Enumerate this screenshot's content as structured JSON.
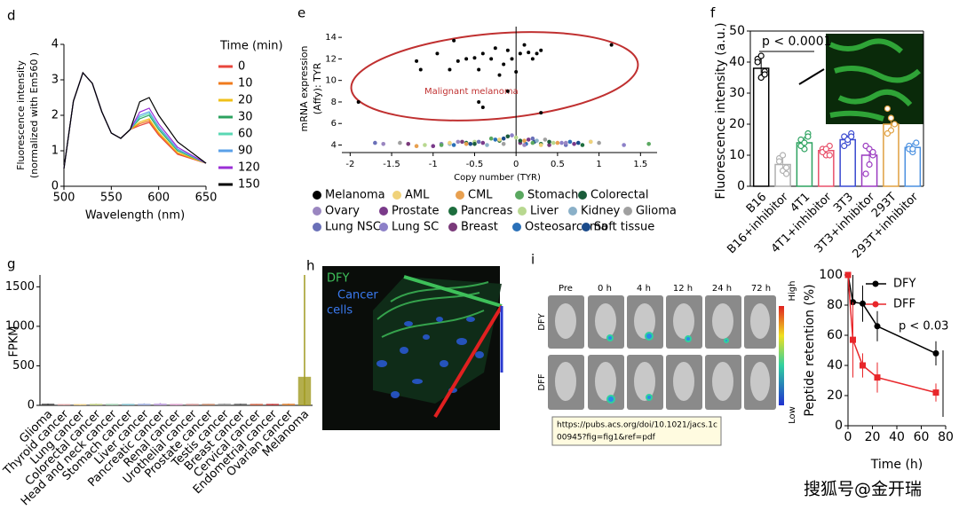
{
  "chart_data": [
    {
      "type": "line",
      "panel": "d",
      "xlabel": "Wavelength (nm)",
      "ylabel_lines": [
        "Fluorescence intensity",
        "(normalized with Em560 )"
      ],
      "legend_title": "Time (min)",
      "x": [
        500,
        510,
        520,
        530,
        540,
        550,
        560,
        570,
        580,
        590,
        600,
        620,
        650
      ],
      "xlim": [
        500,
        650
      ],
      "xticks": [
        500,
        550,
        600,
        650
      ],
      "ylim": [
        0,
        4
      ],
      "yticks": [
        0,
        1,
        2,
        3,
        4
      ],
      "series": [
        {
          "name": "0",
          "color": "#e8463c",
          "values": [
            0.5,
            2.4,
            3.2,
            2.9,
            2.1,
            1.5,
            1.35,
            1.6,
            1.71,
            1.8,
            1.44,
            0.9,
            0.65
          ]
        },
        {
          "name": "10",
          "color": "#f07b1d",
          "values": [
            0.5,
            2.4,
            3.2,
            2.9,
            2.1,
            1.5,
            1.35,
            1.6,
            1.76,
            1.85,
            1.48,
            0.93,
            0.65
          ]
        },
        {
          "name": "20",
          "color": "#f0c01a",
          "values": [
            0.5,
            2.4,
            3.2,
            2.9,
            2.1,
            1.5,
            1.35,
            1.6,
            1.81,
            1.9,
            1.52,
            0.95,
            0.65
          ]
        },
        {
          "name": "30",
          "color": "#2ca25f",
          "values": [
            0.5,
            2.4,
            3.2,
            2.9,
            2.1,
            1.5,
            1.35,
            1.6,
            1.9,
            2.0,
            1.6,
            1.0,
            0.65
          ]
        },
        {
          "name": "60",
          "color": "#5ad8b4",
          "values": [
            0.5,
            2.4,
            3.2,
            2.9,
            2.1,
            1.5,
            1.35,
            1.6,
            1.95,
            2.05,
            1.64,
            1.03,
            0.65
          ]
        },
        {
          "name": "90",
          "color": "#5aa0e8",
          "values": [
            0.5,
            2.4,
            3.2,
            2.9,
            2.1,
            1.5,
            1.35,
            1.6,
            2.0,
            2.1,
            1.68,
            1.05,
            0.65
          ]
        },
        {
          "name": "120",
          "color": "#9b2fd6",
          "values": [
            0.5,
            2.4,
            3.2,
            2.9,
            2.1,
            1.5,
            1.35,
            1.6,
            2.09,
            2.2,
            1.76,
            1.1,
            0.65
          ]
        },
        {
          "name": "150",
          "color": "#000000",
          "values": [
            0.5,
            2.4,
            3.2,
            2.9,
            2.1,
            1.5,
            1.35,
            1.6,
            2.38,
            2.5,
            2.0,
            1.25,
            0.65
          ]
        }
      ]
    },
    {
      "type": "scatter",
      "panel": "e",
      "xlabel": "Copy number (TYR)",
      "ylabel_lines": [
        "mRNA expression",
        "(Affy): TYR"
      ],
      "annotation": "Malignant melanoma",
      "xlim": [
        -2.1,
        1.7
      ],
      "xticks": [
        -2,
        -1.5,
        -1,
        -0.5,
        0,
        0.5,
        1,
        1.5
      ],
      "ylim": [
        3.3,
        15
      ],
      "yticks": [
        4,
        6,
        8,
        10,
        12,
        14
      ],
      "series": [
        {
          "name": "Melanoma",
          "color": "#000000",
          "x": [
            -1.9,
            -1.2,
            -1.15,
            -0.95,
            -0.75,
            -0.7,
            -0.6,
            -0.5,
            -0.45,
            -0.4,
            -0.3,
            -0.25,
            -0.2,
            -0.15,
            -0.1,
            -0.05,
            0,
            0.05,
            0.1,
            0.15,
            0.2,
            0.25,
            0.3,
            -0.45,
            -0.4,
            -0.1,
            0.3,
            1.15,
            -0.8
          ],
          "values": [
            8,
            11.8,
            11,
            12.5,
            13.7,
            11.8,
            12,
            12.1,
            11,
            12.5,
            12,
            13,
            10.5,
            11.5,
            12.8,
            12,
            10.8,
            12.5,
            13.3,
            12.6,
            12,
            12.5,
            12.8,
            8,
            7.5,
            9,
            7,
            13.3,
            11
          ]
        },
        {
          "name": "AML",
          "color": "#f0d27a",
          "x": [
            -0.8,
            -0.2,
            0.3,
            0.9
          ],
          "values": [
            4.2,
            4.5,
            4,
            4.3
          ]
        },
        {
          "name": "CML",
          "color": "#e8a050",
          "x": [
            -0.6,
            0.1,
            0.5,
            -1.2
          ],
          "values": [
            4.1,
            4.4,
            4.2,
            3.9
          ]
        },
        {
          "name": "Stomach",
          "color": "#5aa860",
          "x": [
            -0.3,
            0.2,
            1.6,
            -0.9
          ],
          "values": [
            4.6,
            4.2,
            4.1,
            4
          ]
        },
        {
          "name": "Colorectal",
          "color": "#1a5c3a",
          "x": [
            -0.1,
            0.4,
            -0.5,
            0.05
          ],
          "values": [
            4.8,
            4.3,
            4.1,
            4.4
          ]
        },
        {
          "name": "Ovary",
          "color": "#9a86c0",
          "x": [
            -1.6,
            -0.7,
            0.1,
            0.6
          ],
          "values": [
            4.1,
            4.3,
            4,
            4.2
          ]
        },
        {
          "name": "Prostate",
          "color": "#7a3a8a",
          "x": [
            -0.4,
            0.15,
            0.7,
            -1.0
          ],
          "values": [
            4.2,
            4.5,
            4.1,
            3.9
          ]
        },
        {
          "name": "Pancreas",
          "color": "#1e6e3e",
          "x": [
            -0.2,
            0.3,
            0.8,
            -0.6
          ],
          "values": [
            4.4,
            4.1,
            4,
            4.2
          ]
        },
        {
          "name": "Liver",
          "color": "#b8d890",
          "x": [
            -0.5,
            0.0,
            0.45,
            -1.1
          ],
          "values": [
            4.3,
            4.7,
            4.2,
            4
          ]
        },
        {
          "name": "Kidney",
          "color": "#8ab0c8",
          "x": [
            -0.35,
            0.25,
            0.9,
            -0.8
          ],
          "values": [
            4,
            4.4,
            4.3,
            4.1
          ]
        },
        {
          "name": "Glioma",
          "color": "#a0a0a0",
          "x": [
            -1.4,
            -0.15,
            0.35,
            1.0
          ],
          "values": [
            4.2,
            4.1,
            4.5,
            4.2
          ]
        },
        {
          "name": "Lung NSC",
          "color": "#6a70b8",
          "x": [
            -1.7,
            -0.45,
            0.2,
            0.6
          ],
          "values": [
            4.2,
            4.3,
            4.6,
            4
          ]
        },
        {
          "name": "Lung SC",
          "color": "#8c80c8",
          "x": [
            -0.9,
            -0.05,
            0.55,
            1.3
          ],
          "values": [
            4.1,
            4.9,
            4.2,
            4
          ]
        },
        {
          "name": "Breast",
          "color": "#7a3a7a",
          "x": [
            -0.65,
            0.05,
            0.4,
            -1.3
          ],
          "values": [
            4.3,
            4.2,
            4,
            4.1
          ]
        },
        {
          "name": "Osteosarcoma",
          "color": "#2a70b8",
          "x": [
            -0.25,
            0.12,
            0.65,
            -0.75
          ],
          "values": [
            4.5,
            4.1,
            4.3,
            4
          ]
        },
        {
          "name": "Soft tissue",
          "color": "#1a4a8a",
          "x": [
            -0.55,
            0.22,
            0.75,
            -0.15
          ],
          "values": [
            4.1,
            4.3,
            4.2,
            4.6
          ]
        }
      ]
    },
    {
      "type": "bar",
      "panel": "f",
      "ylabel": "Fluorescence intensity (a.u.)",
      "annotation": "p < 0.0001",
      "categories": [
        "B16",
        "B16+inhibitor",
        "4T1",
        "4T1+inhibitor",
        "3T3",
        "3T3+inhibitor",
        "293T",
        "293T+inhibitor"
      ],
      "values": [
        38,
        7,
        14,
        11.5,
        15,
        10,
        20,
        12.5
      ],
      "errors": [
        3,
        2.5,
        2,
        1.5,
        1.5,
        3,
        3,
        1.5
      ],
      "points": [
        [
          41,
          35,
          37,
          40,
          42,
          36
        ],
        [
          9,
          5,
          4,
          8,
          10,
          6
        ],
        [
          15,
          12,
          17,
          13,
          14,
          16
        ],
        [
          12,
          10,
          13,
          11,
          12,
          10
        ],
        [
          16,
          14,
          17,
          13,
          15,
          16
        ],
        [
          13,
          7,
          10,
          4,
          12,
          11
        ],
        [
          25,
          18,
          20,
          17,
          22
        ],
        [
          13,
          11,
          14,
          12,
          12
        ]
      ],
      "colors": [
        "#000000",
        "#b0b0b0",
        "#2ca25f",
        "#e8506a",
        "#3a4ad0",
        "#9a3ac0",
        "#e0a040",
        "#4a90e0"
      ],
      "ylim": [
        0,
        50
      ],
      "yticks": [
        0,
        10,
        20,
        30,
        40,
        50
      ]
    },
    {
      "type": "box",
      "panel": "g",
      "ylabel": "FPKM",
      "categories": [
        "Glioma",
        "Thyroid cancer",
        "Lung cancer",
        "Colorectal cancer",
        "Head and neck cancer",
        "Stomach cancer",
        "Liver cancer",
        "Pancreatic cancer",
        "Renal cancer",
        "Urothelial cancer",
        "Prostate cancer",
        "Testis cancer",
        "Breast cancer",
        "Cervical cancer",
        "Endometrial cancer",
        "Ovarian cancer",
        "Melanoma"
      ],
      "values": [
        10,
        5,
        5,
        8,
        8,
        8,
        10,
        12,
        8,
        8,
        8,
        10,
        10,
        8,
        8,
        10,
        350
      ],
      "max": [
        20,
        10,
        10,
        20,
        15,
        15,
        25,
        30,
        15,
        15,
        15,
        20,
        20,
        15,
        15,
        20,
        1650
      ],
      "colors": [
        "#404040",
        "#e0a0a0",
        "#f0d080",
        "#c0d080",
        "#a0d0b0",
        "#80c0d0",
        "#a0b0e0",
        "#c0a0e0",
        "#e0a0d0",
        "#d09090",
        "#c08060",
        "#909090",
        "#606060",
        "#d06040",
        "#c03030",
        "#e08030",
        "#a09a20"
      ],
      "ylim": [
        0,
        1650
      ],
      "yticks": [
        0,
        500,
        1000,
        1500
      ]
    },
    {
      "type": "line",
      "xlabel": "Time (h)",
      "ylabel": "Peptide retention (%)",
      "annotation": "p < 0.03",
      "x": [
        0,
        4,
        12,
        24,
        72
      ],
      "xlim": [
        0,
        80
      ],
      "xticks": [
        0,
        20,
        40,
        60,
        80
      ],
      "ylim": [
        0,
        100
      ],
      "yticks": [
        0,
        20,
        40,
        60,
        80,
        100
      ],
      "series": [
        {
          "name": "DFY",
          "color": "#000000",
          "values": [
            100,
            82,
            81,
            66,
            48
          ],
          "errors": [
            0,
            18,
            12,
            10,
            8
          ]
        },
        {
          "name": "DFF",
          "color": "#e8262a",
          "values": [
            100,
            57,
            40,
            32,
            22
          ],
          "errors": [
            0,
            25,
            8,
            10,
            6
          ]
        }
      ]
    }
  ],
  "labels": {
    "h": {
      "panel": "h",
      "dfy": "DFY",
      "cells": [
        "Cancer",
        "cells"
      ]
    },
    "i": {
      "panel": "i",
      "columns": [
        "Pre",
        "0 h",
        "4 h",
        "12 h",
        "24 h",
        "72 h"
      ],
      "rows": [
        "DFY",
        "DFF"
      ],
      "high": "High",
      "low": "Low",
      "url": [
        "https://pubs.acs.org/doi/10.1021/jacs.1c",
        "00945?fig=fig1&ref=pdf"
      ]
    },
    "watermark": "搜狐号@金开瑞"
  }
}
